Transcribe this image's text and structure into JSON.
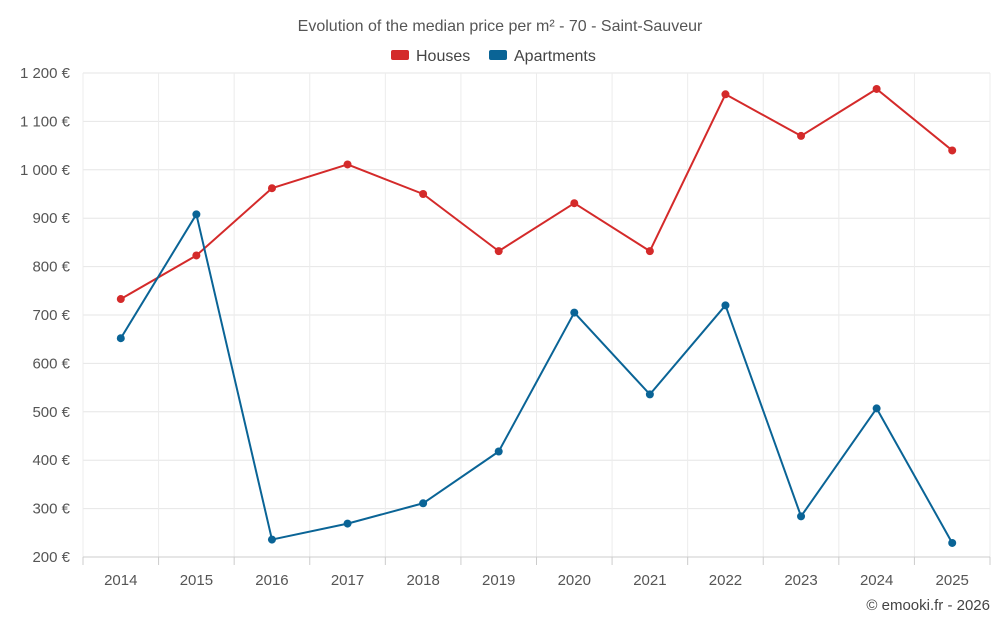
{
  "chart_data": {
    "type": "line",
    "title": "Evolution of the median price per m² - 70 - Saint-Sauveur",
    "categories": [
      "2014",
      "2015",
      "2016",
      "2017",
      "2018",
      "2019",
      "2020",
      "2021",
      "2022",
      "2023",
      "2024",
      "2025"
    ],
    "series": [
      {
        "name": "Houses",
        "color": "#d42a2a",
        "values": [
          733,
          823,
          962,
          1011,
          950,
          832,
          931,
          832,
          1156,
          1070,
          1167,
          1040
        ]
      },
      {
        "name": "Apartments",
        "color": "#0a6496",
        "values": [
          652,
          908,
          236,
          269,
          311,
          418,
          705,
          536,
          720,
          284,
          507,
          229
        ]
      }
    ],
    "ylim": [
      200,
      1200
    ],
    "yticks": [
      200,
      300,
      400,
      500,
      600,
      700,
      800,
      900,
      1000,
      1100,
      1200
    ],
    "ytick_labels": [
      "200 €",
      "300 €",
      "400 €",
      "500 €",
      "600 €",
      "700 €",
      "800 €",
      "900 €",
      "1 000 €",
      "1 100 €",
      "1 200 €"
    ],
    "xlabel": "",
    "ylabel": "",
    "grid": true,
    "legend_position": "top-center"
  },
  "credit": "© emooki.fr - 2026"
}
